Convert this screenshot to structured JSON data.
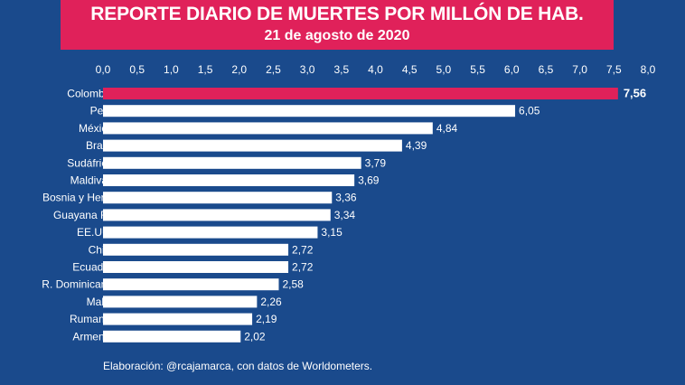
{
  "header": {
    "title": "REPORTE DIARIO DE MUERTES POR MILLÓN DE HAB.",
    "subtitle": "21 de agosto de 2020"
  },
  "footer": {
    "credit": "Elaboración: @rcajamarca, con datos de Worldometers."
  },
  "colors": {
    "background": "#1a4a8c",
    "banner": "#e0215a",
    "highlight_bar": "#e0215a",
    "bar": "#ffffff",
    "text": "#ffffff"
  },
  "chart_data": {
    "type": "bar",
    "orientation": "horizontal",
    "title": "REPORTE DIARIO DE MUERTES POR MILLÓN DE HAB.",
    "subtitle": "21 de agosto de 2020",
    "categories": [
      "Colombia",
      "Perú",
      "México",
      "Brasil",
      "Sudáfrica",
      "Maldivas",
      "Bosnia y Herz.",
      "Guayana Fr.",
      "EE.UU.",
      "Chile",
      "Ecuador",
      "R. Dominicana",
      "Malta",
      "Rumania",
      "Armenia"
    ],
    "values": [
      7.56,
      6.05,
      4.84,
      4.39,
      3.79,
      3.69,
      3.36,
      3.34,
      3.15,
      2.72,
      2.72,
      2.58,
      2.26,
      2.19,
      2.02
    ],
    "value_labels": [
      "7,56",
      "6,05",
      "4,84",
      "4,39",
      "3,79",
      "3,69",
      "3,36",
      "3,34",
      "3,15",
      "2,72",
      "2,72",
      "2,58",
      "2,26",
      "2,19",
      "2,02"
    ],
    "xlim": [
      0,
      8
    ],
    "ticks": [
      0,
      0.5,
      1,
      1.5,
      2,
      2.5,
      3,
      3.5,
      4,
      4.5,
      5,
      5.5,
      6,
      6.5,
      7,
      7.5,
      8
    ],
    "tick_labels": [
      "0,0",
      "0,5",
      "1,0",
      "1,5",
      "2,0",
      "2,5",
      "3,0",
      "3,5",
      "4,0",
      "4,5",
      "5,0",
      "5,5",
      "6,0",
      "6,5",
      "7,0",
      "7,5",
      "8,0"
    ],
    "axis_position": "top",
    "highlight_category": "Colombia",
    "grid": false,
    "legend": false
  }
}
